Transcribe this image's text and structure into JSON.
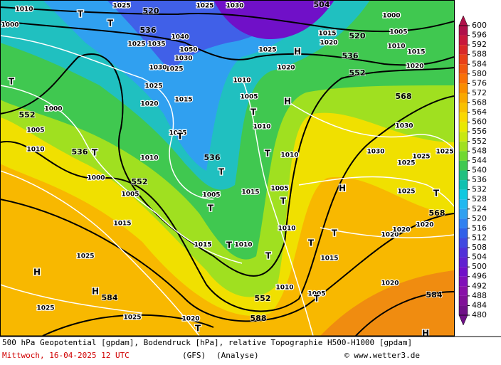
{
  "colorbar": {
    "levels": [
      600,
      596,
      592,
      588,
      584,
      580,
      576,
      572,
      568,
      564,
      560,
      556,
      552,
      548,
      544,
      540,
      536,
      532,
      528,
      524,
      520,
      516,
      512,
      508,
      504,
      500,
      496,
      492,
      488,
      484,
      480
    ],
    "colors": [
      "#b0104a",
      "#c8183c",
      "#d82828",
      "#e84018",
      "#f05810",
      "#f87008",
      "#f88c00",
      "#f8a800",
      "#f8c000",
      "#f8d800",
      "#e8e800",
      "#c8e810",
      "#a0e020",
      "#70d830",
      "#40c850",
      "#20c080",
      "#10c0b0",
      "#10c8e0",
      "#20b8f0",
      "#30a0f0",
      "#3080f0",
      "#3060e8",
      "#4048e0",
      "#5030d8",
      "#6020d0",
      "#7010c8",
      "#8010b8",
      "#8810a8",
      "#801098",
      "#701088"
    ]
  },
  "map_labels": [
    "520",
    "536",
    "504",
    "520",
    "536",
    "552",
    "568",
    "552",
    "536",
    "536",
    "552",
    "568",
    "552",
    "588",
    "584",
    "584",
    "1010",
    "1000",
    "1025",
    "1025",
    "1030",
    "1040",
    "1035",
    "1050",
    "1030",
    "1025",
    "1030",
    "1025",
    "1020",
    "1015",
    "1025",
    "1000",
    "1005",
    "1010",
    "1000",
    "1005",
    "1010",
    "1015",
    "1025",
    "1025",
    "1025",
    "1020",
    "1015",
    "1010",
    "1005",
    "1015",
    "1010",
    "1005",
    "1010",
    "1010",
    "1005",
    "1010",
    "1025",
    "1020",
    "1015",
    "1020",
    "1015",
    "1000",
    "1005",
    "1010",
    "1020",
    "1030",
    "1030",
    "1025",
    "1025",
    "1025",
    "1025",
    "1020",
    "1020",
    "1020",
    "1020",
    "1015",
    "1005",
    "1010",
    "1025",
    "T",
    "T",
    "T",
    "T",
    "T",
    "T",
    "T",
    "T",
    "T",
    "T",
    "T",
    "T",
    "T",
    "T",
    "T",
    "T",
    "T",
    "H",
    "H",
    "H",
    "H",
    "H",
    "H"
  ],
  "footer": {
    "line1": "500 hPa Geopotential [gpdam], Bodendruck [hPa], relative Topographie H500-H1000 [gpdam]",
    "date": "Mittwoch, 16-04-2025  12 UTC",
    "model": "(GFS)",
    "run": "(Analyse)",
    "credit": "© www.wetter3.de"
  }
}
